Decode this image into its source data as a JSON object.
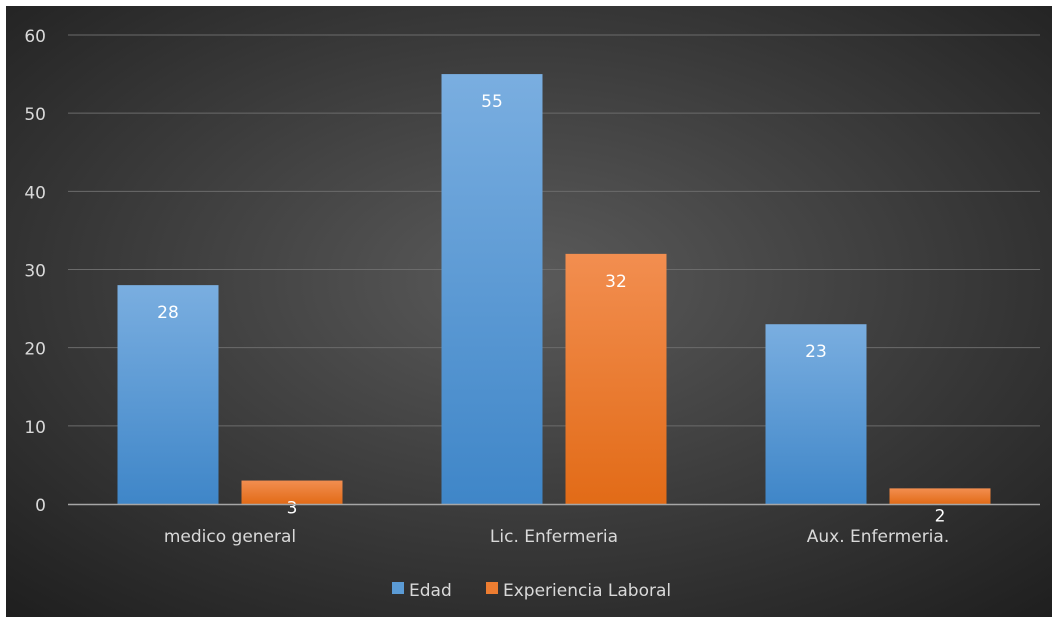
{
  "colors": {
    "bg_outer": "#1e1e1e",
    "bg_center": "#5a5a5a",
    "grid": "#6b6b6b",
    "axis": "#a6a6a6",
    "text": "#d9d9d9",
    "edad": "#5b9bd5",
    "experiencia": "#ed7d31"
  },
  "chart_data": {
    "type": "bar",
    "title": "",
    "xlabel": "",
    "ylabel": "",
    "ylim": [
      0,
      60
    ],
    "yticks": [
      0,
      10,
      20,
      30,
      40,
      50,
      60
    ],
    "grid": true,
    "legend_position": "bottom",
    "categories": [
      "medico general",
      "Lic. Enfermeria",
      "Aux. Enfermeria."
    ],
    "series": [
      {
        "name": "Edad",
        "color": "#5b9bd5",
        "values": [
          28,
          55,
          23
        ]
      },
      {
        "name": "Experiencia Laboral",
        "color": "#ed7d31",
        "values": [
          3,
          32,
          2
        ]
      }
    ]
  }
}
